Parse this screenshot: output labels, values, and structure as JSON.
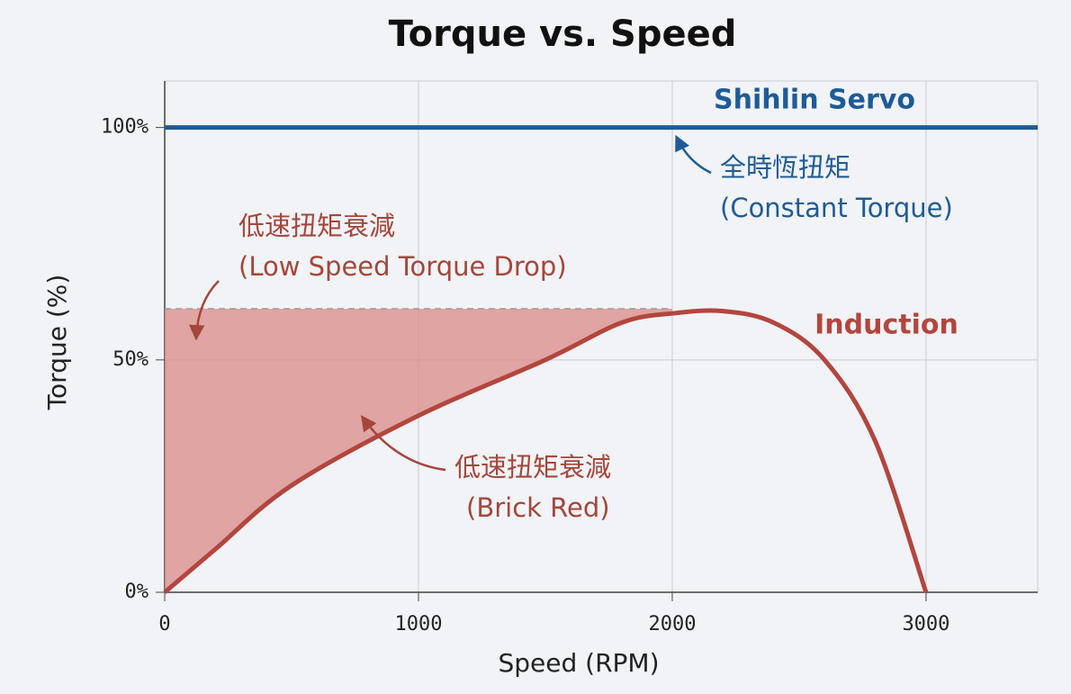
{
  "chart_data": {
    "type": "line",
    "title": "Torque vs. Speed",
    "x_label": "Speed (RPM)",
    "y_label": "Torque (%)",
    "xlim": [
      0,
      3440
    ],
    "ylim": [
      0,
      110
    ],
    "xticks": [
      0,
      1000,
      2000,
      3000
    ],
    "yticks": [
      {
        "value": 0,
        "label": "0%"
      },
      {
        "value": 50,
        "label": "50%"
      },
      {
        "value": 100,
        "label": "100%"
      }
    ],
    "grid": true,
    "series": [
      {
        "name": "Shihlin Servo",
        "color": "#1f5b96",
        "x": [
          0,
          3440
        ],
        "values": [
          100,
          100
        ]
      },
      {
        "name": "Induction",
        "color": "#b2463f",
        "x": [
          0,
          200,
          500,
          1000,
          1500,
          1800,
          2000,
          2200,
          2400,
          2600,
          2800,
          3000
        ],
        "values": [
          0,
          9.3,
          23,
          38,
          50,
          58,
          60,
          60.5,
          58,
          50,
          32.5,
          0
        ]
      }
    ],
    "shade": {
      "level": 61,
      "x_end": 2000,
      "color": "#d98a86"
    },
    "annotations": [
      {
        "lines": [
          "全時恆扭矩",
          "(Constant Torque)"
        ],
        "color": "#1f5b96"
      },
      {
        "lines": [
          "低速扭矩衰減",
          "(Low Speed Torque Drop)"
        ],
        "color": "#a4463c"
      },
      {
        "lines": [
          "低速扭矩衰減",
          "(Brick Red)"
        ],
        "color": "#a4463c"
      }
    ]
  }
}
